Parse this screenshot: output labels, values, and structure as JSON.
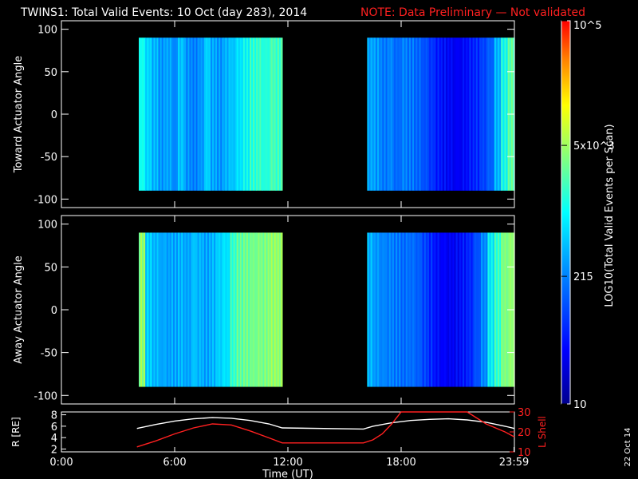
{
  "title": "TWINS1: Total Valid Events: 10 Oct (day 283), 2014",
  "note": "NOTE: Data Preliminary — Not validated",
  "stamp": "22 Oct 14",
  "colors": {
    "note": "#ff2020",
    "lshell": "#ff2020",
    "radius": "#ffffff",
    "frame": "#ffffff"
  },
  "colorbar": {
    "label": "LOG10(Total Valid Events per Scan)",
    "ticks": [
      {
        "label": "10",
        "value": 10
      },
      {
        "label": "215",
        "value": 215
      },
      {
        "label": "5x10^3",
        "value": 5000
      },
      {
        "label": "10^5",
        "value": 100000
      }
    ],
    "colormap": [
      "#00008f",
      "#0000ff",
      "#0080ff",
      "#00ffff",
      "#80ff80",
      "#ffff00",
      "#ff8000",
      "#ff0000"
    ]
  },
  "chart_data": [
    {
      "type": "heatmap",
      "name": "toward-panel",
      "ylabel": "Toward Actuator Angle",
      "ylim": [
        -110,
        110
      ],
      "yticks": [
        100,
        50,
        0,
        -50,
        -100
      ],
      "xlim": [
        0,
        24
      ],
      "data_blocks": [
        {
          "x_start": 4.1,
          "x_end": 11.7,
          "y_range": [
            -90,
            90
          ],
          "column_levels": [
            0.52,
            0.45,
            0.4,
            0.36,
            0.38,
            0.34,
            0.42,
            0.35,
            0.33,
            0.36,
            0.44,
            0.38,
            0.36,
            0.4,
            0.42,
            0.46,
            0.5,
            0.55,
            0.56,
            0.54,
            0.58,
            0.57
          ]
        },
        {
          "x_start": 16.2,
          "x_end": 24.0,
          "y_range": [
            -90,
            90
          ],
          "column_levels": [
            0.38,
            0.36,
            0.32,
            0.34,
            0.3,
            0.33,
            0.31,
            0.29,
            0.26,
            0.22,
            0.18,
            0.15,
            0.14,
            0.13,
            0.15,
            0.18,
            0.2,
            0.24,
            0.28,
            0.4,
            0.52,
            0.6
          ]
        }
      ]
    },
    {
      "type": "heatmap",
      "name": "away-panel",
      "ylabel": "Away Actuator Angle",
      "ylim": [
        -110,
        110
      ],
      "yticks": [
        100,
        50,
        0,
        -50,
        -100
      ],
      "xlim": [
        0,
        24
      ],
      "data_blocks": [
        {
          "x_start": 4.1,
          "x_end": 11.7,
          "y_range": [
            -90,
            90
          ],
          "column_levels": [
            0.66,
            0.44,
            0.4,
            0.38,
            0.37,
            0.38,
            0.4,
            0.38,
            0.42,
            0.4,
            0.38,
            0.4,
            0.44,
            0.46,
            0.56,
            0.6,
            0.62,
            0.63,
            0.64,
            0.64,
            0.66,
            0.66
          ]
        },
        {
          "x_start": 16.2,
          "x_end": 24.0,
          "y_range": [
            -90,
            90
          ],
          "column_levels": [
            0.4,
            0.36,
            0.34,
            0.33,
            0.32,
            0.3,
            0.3,
            0.28,
            0.24,
            0.2,
            0.16,
            0.14,
            0.13,
            0.14,
            0.17,
            0.2,
            0.26,
            0.34,
            0.48,
            0.56,
            0.64,
            0.66
          ]
        }
      ]
    },
    {
      "type": "line",
      "name": "orbit-panel",
      "xlabel": "Time (UT)",
      "xticks": [
        {
          "label": "0:00",
          "value": 0
        },
        {
          "label": "6:00",
          "value": 6
        },
        {
          "label": "12:00",
          "value": 12
        },
        {
          "label": "18:00",
          "value": 18
        },
        {
          "label": "23:59",
          "value": 23.98
        }
      ],
      "ylabel_left": "R [RE]",
      "ylim_left": [
        1.5,
        8.5
      ],
      "yticks_left": [
        8,
        6,
        4,
        2
      ],
      "ylabel_right": "L Shell",
      "ylim_right": [
        10,
        30
      ],
      "yticks_right": [
        30,
        20,
        10
      ],
      "series": [
        {
          "axis": "left",
          "x": [
            4.0,
            5.0,
            6.0,
            7.0,
            8.0,
            9.0,
            10.0,
            11.0,
            11.7,
            16.0,
            16.5,
            17.5,
            18.5,
            19.5,
            20.5,
            21.5,
            22.5,
            23.5,
            24.0
          ],
          "y": [
            5.6,
            6.3,
            6.9,
            7.3,
            7.5,
            7.4,
            7.0,
            6.4,
            5.7,
            5.5,
            6.0,
            6.6,
            7.0,
            7.2,
            7.3,
            7.1,
            6.7,
            6.0,
            5.6
          ]
        },
        {
          "axis": "right",
          "x": [
            4.0,
            5.0,
            6.0,
            7.0,
            8.0,
            9.0,
            10.0,
            11.0,
            11.7,
            16.0,
            16.5,
            17.0,
            17.5,
            18.0,
            21.5,
            22.5,
            23.5,
            24.0
          ],
          "y": [
            12.5,
            15.5,
            19.0,
            22.0,
            24.0,
            23.5,
            20.5,
            17.0,
            14.5,
            14.5,
            16.0,
            19.0,
            24.0,
            31.0,
            31.0,
            24.0,
            20.0,
            17.5
          ]
        }
      ]
    }
  ]
}
